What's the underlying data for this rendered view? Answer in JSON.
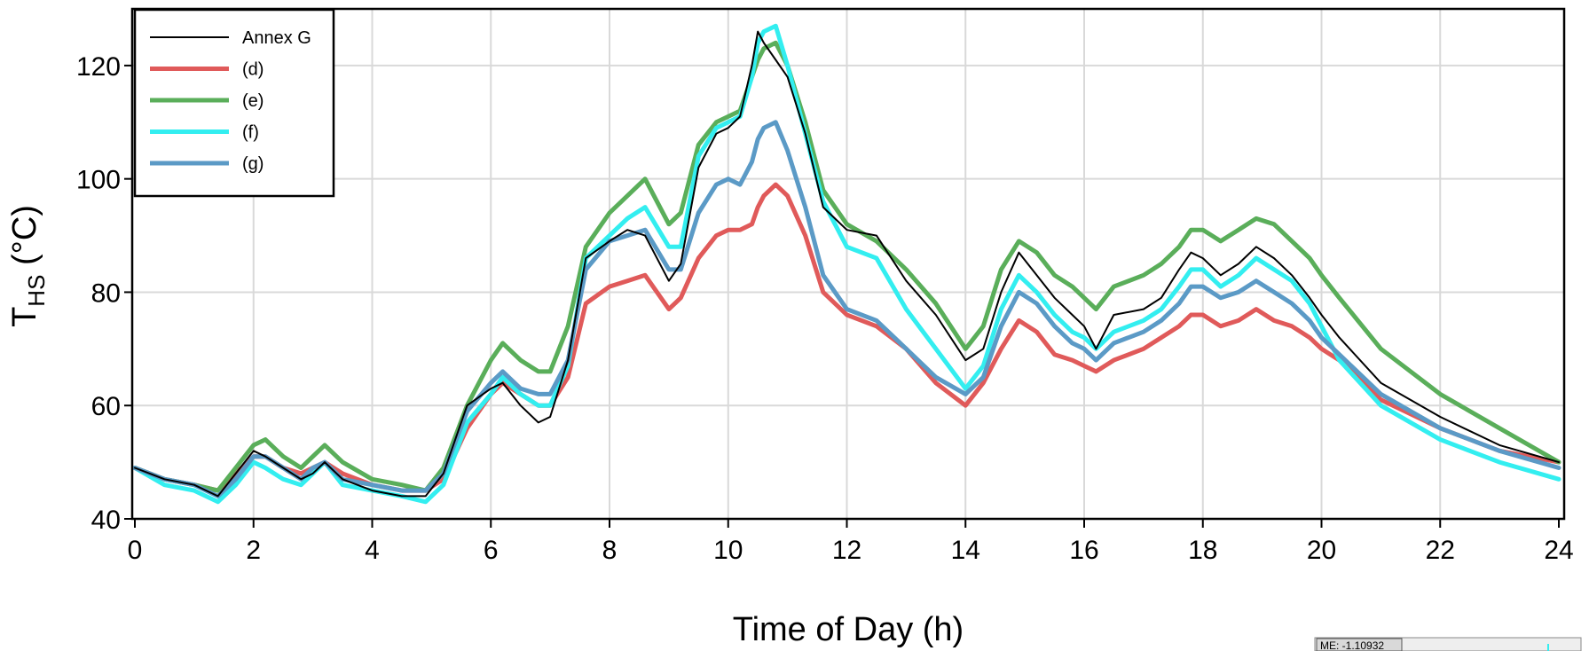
{
  "chart_data": {
    "type": "line",
    "title": "",
    "xlabel": "Time of Day (h)",
    "ylabel": {
      "main": "T",
      "sub": "HS",
      "unit": " (°C)"
    },
    "xlim": [
      0,
      24
    ],
    "ylim": [
      40,
      130
    ],
    "xticks": [
      0,
      2,
      4,
      6,
      8,
      10,
      12,
      14,
      16,
      18,
      20,
      22,
      24
    ],
    "yticks": [
      40,
      60,
      80,
      100,
      120
    ],
    "grid": true,
    "legend_position": "top-left",
    "series": [
      {
        "name": "Annex G",
        "color": "#000000",
        "style": "thin",
        "x": [
          0,
          0.5,
          1,
          1.4,
          1.7,
          2,
          2.2,
          2.5,
          2.8,
          3,
          3.2,
          3.5,
          4,
          4.5,
          4.9,
          5.2,
          5.6,
          6,
          6.2,
          6.5,
          6.8,
          7,
          7.3,
          7.6,
          8,
          8.3,
          8.6,
          9,
          9.2,
          9.5,
          9.8,
          10,
          10.2,
          10.4,
          10.5,
          10.6,
          10.8,
          11,
          11.3,
          11.6,
          12,
          12.5,
          13,
          13.5,
          14,
          14.3,
          14.6,
          14.9,
          15.2,
          15.5,
          15.8,
          16,
          16.2,
          16.5,
          17,
          17.3,
          17.6,
          17.8,
          18,
          18.3,
          18.6,
          18.9,
          19.2,
          19.5,
          19.8,
          20,
          20.3,
          21,
          22,
          23,
          24
        ],
        "y": [
          49,
          47,
          46,
          44,
          48,
          52,
          51,
          49,
          47,
          48,
          50,
          47,
          45,
          44,
          44,
          48,
          60,
          63,
          64,
          60,
          57,
          58,
          68,
          86,
          89,
          91,
          90,
          82,
          85,
          102,
          108,
          109,
          111,
          120,
          126,
          124,
          121,
          118,
          108,
          95,
          91,
          90,
          82,
          76,
          68,
          70,
          80,
          87,
          83,
          79,
          76,
          74,
          70,
          76,
          77,
          79,
          84,
          87,
          86,
          83,
          85,
          88,
          86,
          83,
          79,
          76,
          72,
          64,
          58,
          53,
          50
        ]
      },
      {
        "name": "(d)",
        "color": "#e05a5a",
        "style": "thick",
        "x": [
          0,
          0.5,
          1,
          1.4,
          1.7,
          2,
          2.2,
          2.5,
          2.8,
          3,
          3.2,
          3.5,
          4,
          4.5,
          4.9,
          5.2,
          5.6,
          6,
          6.2,
          6.5,
          6.8,
          7,
          7.3,
          7.6,
          8,
          8.3,
          8.6,
          9,
          9.2,
          9.5,
          9.8,
          10,
          10.2,
          10.4,
          10.5,
          10.6,
          10.8,
          11,
          11.3,
          11.6,
          12,
          12.5,
          13,
          13.5,
          14,
          14.3,
          14.6,
          14.9,
          15.2,
          15.5,
          15.8,
          16,
          16.2,
          16.5,
          17,
          17.3,
          17.6,
          17.8,
          18,
          18.3,
          18.6,
          18.9,
          19.2,
          19.5,
          19.8,
          20,
          20.3,
          21,
          22,
          23,
          24
        ],
        "y": [
          49,
          47,
          46,
          45,
          48,
          51,
          51,
          49,
          48,
          49,
          50,
          48,
          46,
          45,
          45,
          47,
          56,
          62,
          64,
          62,
          60,
          60,
          65,
          78,
          81,
          82,
          83,
          77,
          79,
          86,
          90,
          91,
          91,
          92,
          95,
          97,
          99,
          97,
          90,
          80,
          76,
          74,
          70,
          64,
          60,
          64,
          70,
          75,
          73,
          69,
          68,
          67,
          66,
          68,
          70,
          72,
          74,
          76,
          76,
          74,
          75,
          77,
          75,
          74,
          72,
          70,
          68,
          61,
          56,
          52,
          50
        ]
      },
      {
        "name": "(e)",
        "color": "#5aae5a",
        "style": "thick",
        "x": [
          0,
          0.5,
          1,
          1.4,
          1.7,
          2,
          2.2,
          2.5,
          2.8,
          3,
          3.2,
          3.5,
          4,
          4.5,
          4.9,
          5.2,
          5.6,
          6,
          6.2,
          6.5,
          6.8,
          7,
          7.3,
          7.6,
          8,
          8.3,
          8.6,
          9,
          9.2,
          9.5,
          9.8,
          10,
          10.2,
          10.4,
          10.5,
          10.6,
          10.8,
          11,
          11.3,
          11.6,
          12,
          12.5,
          13,
          13.5,
          14,
          14.3,
          14.6,
          14.9,
          15.2,
          15.5,
          15.8,
          16,
          16.2,
          16.5,
          17,
          17.3,
          17.6,
          17.8,
          18,
          18.3,
          18.6,
          18.9,
          19.2,
          19.5,
          19.8,
          20,
          20.3,
          21,
          22,
          23,
          24
        ],
        "y": [
          49,
          47,
          46,
          45,
          49,
          53,
          54,
          51,
          49,
          51,
          53,
          50,
          47,
          46,
          45,
          49,
          60,
          68,
          71,
          68,
          66,
          66,
          74,
          88,
          94,
          97,
          100,
          92,
          94,
          106,
          110,
          111,
          112,
          118,
          121,
          123,
          124,
          120,
          110,
          98,
          92,
          89,
          84,
          78,
          70,
          74,
          84,
          89,
          87,
          83,
          81,
          79,
          77,
          81,
          83,
          85,
          88,
          91,
          91,
          89,
          91,
          93,
          92,
          89,
          86,
          83,
          79,
          70,
          62,
          56,
          50
        ]
      },
      {
        "name": "(f)",
        "color": "#33eef0",
        "style": "thick",
        "x": [
          0,
          0.5,
          1,
          1.4,
          1.7,
          2,
          2.2,
          2.5,
          2.8,
          3,
          3.2,
          3.5,
          4,
          4.5,
          4.9,
          5.2,
          5.6,
          6,
          6.2,
          6.5,
          6.8,
          7,
          7.3,
          7.6,
          8,
          8.3,
          8.6,
          9,
          9.2,
          9.5,
          9.8,
          10,
          10.2,
          10.4,
          10.5,
          10.6,
          10.8,
          11,
          11.3,
          11.6,
          12,
          12.5,
          13,
          13.5,
          14,
          14.3,
          14.6,
          14.9,
          15.2,
          15.5,
          15.8,
          16,
          16.2,
          16.5,
          17,
          17.3,
          17.6,
          17.8,
          18,
          18.3,
          18.6,
          18.9,
          19.2,
          19.5,
          19.8,
          20,
          20.3,
          21,
          22,
          23,
          24
        ],
        "y": [
          49,
          46,
          45,
          43,
          46,
          50,
          49,
          47,
          46,
          48,
          50,
          46,
          45,
          44,
          43,
          46,
          57,
          62,
          65,
          62,
          60,
          60,
          67,
          86,
          90,
          93,
          95,
          88,
          88,
          104,
          109,
          110,
          111,
          118,
          124,
          126,
          127,
          120,
          108,
          96,
          88,
          86,
          77,
          70,
          63,
          67,
          77,
          83,
          80,
          76,
          73,
          72,
          70,
          73,
          75,
          77,
          81,
          84,
          84,
          81,
          83,
          86,
          84,
          82,
          78,
          74,
          68,
          60,
          54,
          50,
          47
        ]
      },
      {
        "name": "(g)",
        "color": "#5b9ac6",
        "style": "thick",
        "x": [
          0,
          0.5,
          1,
          1.4,
          1.7,
          2,
          2.2,
          2.5,
          2.8,
          3,
          3.2,
          3.5,
          4,
          4.5,
          4.9,
          5.2,
          5.6,
          6,
          6.2,
          6.5,
          6.8,
          7,
          7.3,
          7.6,
          8,
          8.3,
          8.6,
          9,
          9.2,
          9.5,
          9.8,
          10,
          10.2,
          10.4,
          10.5,
          10.6,
          10.8,
          11,
          11.3,
          11.6,
          12,
          12.5,
          13,
          13.5,
          14,
          14.3,
          14.6,
          14.9,
          15.2,
          15.5,
          15.8,
          16,
          16.2,
          16.5,
          17,
          17.3,
          17.6,
          17.8,
          18,
          18.3,
          18.6,
          18.9,
          19.2,
          19.5,
          19.8,
          20,
          20.3,
          21,
          22,
          23,
          24
        ],
        "y": [
          49,
          47,
          46,
          44,
          47,
          51,
          51,
          49,
          47,
          49,
          50,
          47,
          46,
          45,
          45,
          48,
          59,
          64,
          66,
          63,
          62,
          62,
          68,
          84,
          89,
          90,
          91,
          84,
          84,
          94,
          99,
          100,
          99,
          103,
          107,
          109,
          110,
          105,
          95,
          83,
          77,
          75,
          70,
          65,
          62,
          65,
          74,
          80,
          78,
          74,
          71,
          70,
          68,
          71,
          73,
          75,
          78,
          81,
          81,
          79,
          80,
          82,
          80,
          78,
          75,
          72,
          69,
          62,
          56,
          52,
          49
        ]
      }
    ]
  },
  "stray_box_text": "ME: -1.10932"
}
